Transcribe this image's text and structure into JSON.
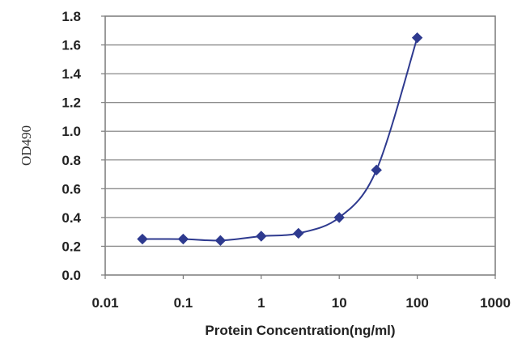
{
  "chart_data": {
    "type": "line",
    "title": "",
    "xlabel": "Protein Concentration(ng/ml)",
    "ylabel": "OD490",
    "x_scale": "log",
    "xlim": [
      0.01,
      1000
    ],
    "ylim": [
      0,
      1.8
    ],
    "x_ticks": [
      "0.01",
      "0.1",
      "1",
      "10",
      "100",
      "1000"
    ],
    "y_ticks": [
      "0.0",
      "0.2",
      "0.4",
      "0.6",
      "0.8",
      "1.0",
      "1.2",
      "1.4",
      "1.6",
      "1.8"
    ],
    "grid": "horizontal",
    "series": [
      {
        "color": "#2e3a8f",
        "points": [
          {
            "x": 0.03,
            "y": 0.25
          },
          {
            "x": 0.1,
            "y": 0.25
          },
          {
            "x": 0.3,
            "y": 0.24
          },
          {
            "x": 1,
            "y": 0.27
          },
          {
            "x": 3,
            "y": 0.29
          },
          {
            "x": 10,
            "y": 0.4
          },
          {
            "x": 30,
            "y": 0.73
          },
          {
            "x": 100,
            "y": 1.65
          }
        ]
      }
    ]
  }
}
